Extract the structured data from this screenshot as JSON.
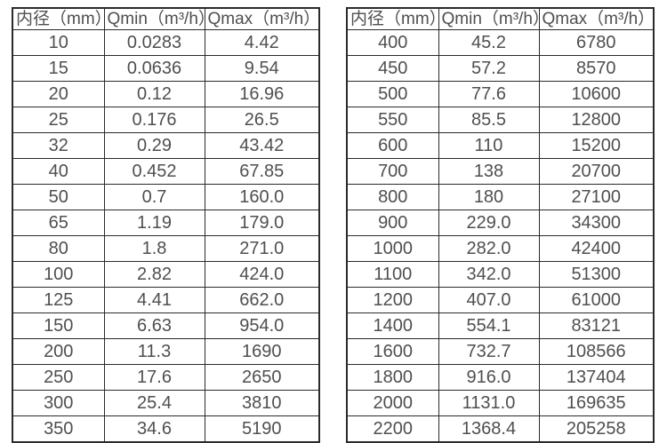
{
  "colors": {
    "border": "#2a2a2a",
    "text": "#4f4f4f",
    "background": "#ffffff"
  },
  "tables": [
    {
      "name": "flow-spec-small-diameters",
      "headers": [
        "内径（mm）",
        "Qmin（m³/h）",
        "Qmax（m³/h）"
      ],
      "rows": [
        [
          "10",
          "0.0283",
          "4.42"
        ],
        [
          "15",
          "0.0636",
          "9.54"
        ],
        [
          "20",
          "0.12",
          "16.96"
        ],
        [
          "25",
          "0.176",
          "26.5"
        ],
        [
          "32",
          "0.29",
          "43.42"
        ],
        [
          "40",
          "0.452",
          "67.85"
        ],
        [
          "50",
          "0.7",
          "160.0"
        ],
        [
          "65",
          "1.19",
          "179.0"
        ],
        [
          "80",
          "1.8",
          "271.0"
        ],
        [
          "100",
          "2.82",
          "424.0"
        ],
        [
          "125",
          "4.41",
          "662.0"
        ],
        [
          "150",
          "6.63",
          "954.0"
        ],
        [
          "200",
          "11.3",
          "1690"
        ],
        [
          "250",
          "17.6",
          "2650"
        ],
        [
          "300",
          "25.4",
          "3810"
        ],
        [
          "350",
          "34.6",
          "5190"
        ]
      ]
    },
    {
      "name": "flow-spec-large-diameters",
      "headers": [
        "内径（mm）",
        "Qmin（m³/h）",
        "Qmax（m³/h）"
      ],
      "rows": [
        [
          "400",
          "45.2",
          "6780"
        ],
        [
          "450",
          "57.2",
          "8570"
        ],
        [
          "500",
          "77.6",
          "10600"
        ],
        [
          "550",
          "85.5",
          "12800"
        ],
        [
          "600",
          "110",
          "15200"
        ],
        [
          "700",
          "138",
          "20700"
        ],
        [
          "800",
          "180",
          "27100"
        ],
        [
          "900",
          "229.0",
          "34300"
        ],
        [
          "1000",
          "282.0",
          "42400"
        ],
        [
          "1100",
          "342.0",
          "51300"
        ],
        [
          "1200",
          "407.0",
          "61000"
        ],
        [
          "1400",
          "554.1",
          "83121"
        ],
        [
          "1600",
          "732.7",
          "108566"
        ],
        [
          "1800",
          "916.0",
          "137404"
        ],
        [
          "2000",
          "1131.0",
          "169635"
        ],
        [
          "2200",
          "1368.4",
          "205258"
        ]
      ]
    }
  ]
}
